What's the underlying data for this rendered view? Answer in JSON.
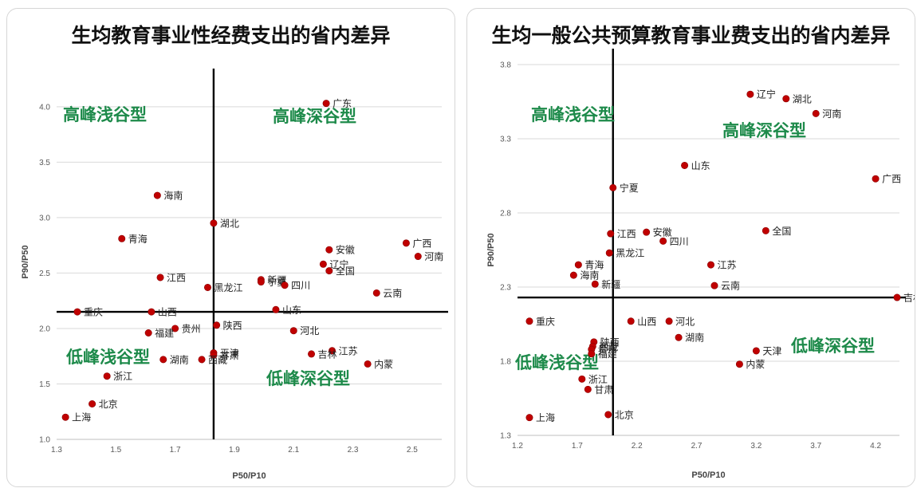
{
  "chart_data": [
    {
      "type": "scatter",
      "title": "生均教育事业性经费支出的省内差异",
      "xlabel": "P50/P10",
      "ylabel": "P90/P50",
      "xlim": [
        1.3,
        2.6
      ],
      "ylim": [
        1.0,
        4.2
      ],
      "xticks": [
        "1.3",
        "1.5",
        "1.7",
        "1.9",
        "2.1",
        "2.3",
        "2.5"
      ],
      "yticks": [
        "1.0",
        "1.5",
        "2.0",
        "2.5",
        "3.0",
        "3.5",
        "4.0"
      ],
      "grid": "horizontal",
      "point_color": "#c00000",
      "reference_lines": {
        "x": 1.83,
        "y": 2.15
      },
      "quadrant_labels": [
        "高峰浅谷型",
        "高峰深谷型",
        "低峰浅谷型",
        "低峰深谷型"
      ],
      "points": [
        {
          "label": "广东",
          "x": 2.21,
          "y": 4.03
        },
        {
          "label": "海南",
          "x": 1.64,
          "y": 3.2
        },
        {
          "label": "湖北",
          "x": 1.83,
          "y": 2.95
        },
        {
          "label": "青海",
          "x": 1.52,
          "y": 2.81
        },
        {
          "label": "广西",
          "x": 2.48,
          "y": 2.77
        },
        {
          "label": "安徽",
          "x": 2.22,
          "y": 2.71
        },
        {
          "label": "河南",
          "x": 2.52,
          "y": 2.65
        },
        {
          "label": "辽宁",
          "x": 2.2,
          "y": 2.58
        },
        {
          "label": "全国",
          "x": 2.22,
          "y": 2.52
        },
        {
          "label": "江西",
          "x": 1.65,
          "y": 2.46
        },
        {
          "label": "新疆",
          "x": 1.99,
          "y": 2.44
        },
        {
          "label": "宁夏",
          "x": 1.99,
          "y": 2.42
        },
        {
          "label": "四川",
          "x": 2.07,
          "y": 2.39
        },
        {
          "label": "黑龙江",
          "x": 1.81,
          "y": 2.37
        },
        {
          "label": "云南",
          "x": 2.38,
          "y": 2.32
        },
        {
          "label": "重庆",
          "x": 1.37,
          "y": 2.15
        },
        {
          "label": "山西",
          "x": 1.62,
          "y": 2.15
        },
        {
          "label": "山东",
          "x": 2.04,
          "y": 2.17
        },
        {
          "label": "陕西",
          "x": 1.84,
          "y": 2.03
        },
        {
          "label": "贵州",
          "x": 1.7,
          "y": 2.0
        },
        {
          "label": "河北",
          "x": 2.1,
          "y": 1.98
        },
        {
          "label": "福建",
          "x": 1.61,
          "y": 1.96
        },
        {
          "label": "江苏",
          "x": 2.23,
          "y": 1.8
        },
        {
          "label": "天津",
          "x": 1.83,
          "y": 1.78
        },
        {
          "label": "甘肃",
          "x": 1.83,
          "y": 1.76
        },
        {
          "label": "吉林",
          "x": 2.16,
          "y": 1.77
        },
        {
          "label": "湖南",
          "x": 1.66,
          "y": 1.72
        },
        {
          "label": "西藏",
          "x": 1.79,
          "y": 1.72
        },
        {
          "label": "内蒙",
          "x": 2.35,
          "y": 1.68
        },
        {
          "label": "浙江",
          "x": 1.47,
          "y": 1.57
        },
        {
          "label": "北京",
          "x": 1.42,
          "y": 1.32
        },
        {
          "label": "上海",
          "x": 1.33,
          "y": 1.2
        }
      ]
    },
    {
      "type": "scatter",
      "title": "生均一般公共预算教育事业费支出的省内差异",
      "xlabel": "P50/P10",
      "ylabel": "P90/P50",
      "xlim": [
        1.2,
        4.4
      ],
      "ylim": [
        1.3,
        3.8
      ],
      "xticks": [
        "1.2",
        "1.7",
        "2.2",
        "2.7",
        "3.2",
        "3.7",
        "4.2"
      ],
      "yticks": [
        "1.3",
        "1.8",
        "2.3",
        "2.8",
        "3.3",
        "3.8"
      ],
      "grid": "horizontal",
      "point_color": "#c00000",
      "reference_lines": {
        "x": 2.0,
        "y": 2.23
      },
      "quadrant_labels": [
        "高峰浅谷型",
        "高峰深谷型",
        "低峰浅谷型",
        "低峰深谷型"
      ],
      "points": [
        {
          "label": "辽宁",
          "x": 3.15,
          "y": 3.6
        },
        {
          "label": "湖北",
          "x": 3.45,
          "y": 3.57
        },
        {
          "label": "河南",
          "x": 3.7,
          "y": 3.47
        },
        {
          "label": "山东",
          "x": 2.6,
          "y": 3.12
        },
        {
          "label": "广西",
          "x": 4.2,
          "y": 3.03
        },
        {
          "label": "宁夏",
          "x": 2.0,
          "y": 2.97
        },
        {
          "label": "全国",
          "x": 3.28,
          "y": 2.68
        },
        {
          "label": "江西",
          "x": 1.98,
          "y": 2.66
        },
        {
          "label": "安徽",
          "x": 2.28,
          "y": 2.67
        },
        {
          "label": "四川",
          "x": 2.42,
          "y": 2.61
        },
        {
          "label": "黑龙江",
          "x": 1.97,
          "y": 2.53
        },
        {
          "label": "江苏",
          "x": 2.82,
          "y": 2.45
        },
        {
          "label": "青海",
          "x": 1.71,
          "y": 2.45
        },
        {
          "label": "海南",
          "x": 1.67,
          "y": 2.38
        },
        {
          "label": "新疆",
          "x": 1.85,
          "y": 2.32
        },
        {
          "label": "云南",
          "x": 2.85,
          "y": 2.31
        },
        {
          "label": "吉林",
          "x": 4.38,
          "y": 2.23
        },
        {
          "label": "重庆",
          "x": 1.3,
          "y": 2.07
        },
        {
          "label": "山西",
          "x": 2.15,
          "y": 2.07
        },
        {
          "label": "河北",
          "x": 2.47,
          "y": 2.07
        },
        {
          "label": "湖南",
          "x": 2.55,
          "y": 1.96
        },
        {
          "label": "陕西",
          "x": 1.84,
          "y": 1.93
        },
        {
          "label": "西藏",
          "x": 1.83,
          "y": 1.9
        },
        {
          "label": "贵州",
          "x": 1.82,
          "y": 1.88
        },
        {
          "label": "福建",
          "x": 1.82,
          "y": 1.85
        },
        {
          "label": "天津",
          "x": 3.2,
          "y": 1.87
        },
        {
          "label": "内蒙",
          "x": 3.06,
          "y": 1.78
        },
        {
          "label": "浙江",
          "x": 1.74,
          "y": 1.68
        },
        {
          "label": "甘肃",
          "x": 1.79,
          "y": 1.61
        },
        {
          "label": "北京",
          "x": 1.96,
          "y": 1.44
        },
        {
          "label": "上海",
          "x": 1.3,
          "y": 1.42
        }
      ]
    }
  ]
}
